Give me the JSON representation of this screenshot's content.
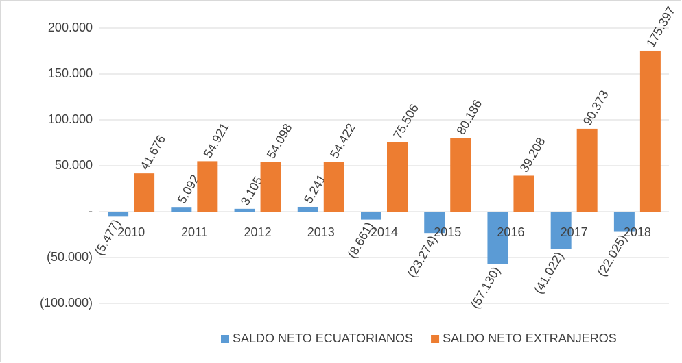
{
  "chart_data": {
    "type": "bar",
    "categories": [
      "2010",
      "2011",
      "2012",
      "2013",
      "2014",
      "2015",
      "2016",
      "2017",
      "2018"
    ],
    "series": [
      {
        "name": "SALDO NETO ECUATORIANOS",
        "color": "#5b9bd5",
        "values": [
          -5477,
          5092,
          3105,
          5241,
          -8661,
          -23274,
          -57130,
          -41022,
          -22025
        ],
        "value_labels": [
          "(5.477)",
          "5.092",
          "3.105",
          "5.241",
          "(8.661)",
          "(23.274)",
          "(57.130)",
          "(41.022)",
          "(22.025)"
        ]
      },
      {
        "name": "SALDO NETO EXTRANJEROS",
        "color": "#ed7d31",
        "values": [
          41676,
          54921,
          54098,
          54422,
          75506,
          80186,
          39208,
          90373,
          175397
        ],
        "value_labels": [
          "41.676",
          "54.921",
          "54.098",
          "54.422",
          "75.506",
          "80.186",
          "39.208",
          "90.373",
          "175.397"
        ]
      }
    ],
    "ylim": [
      -100000,
      200000
    ],
    "yticks": [
      {
        "value": 200000,
        "label": "200.000"
      },
      {
        "value": 150000,
        "label": "150.000"
      },
      {
        "value": 100000,
        "label": "100.000"
      },
      {
        "value": 50000,
        "label": "50.000"
      },
      {
        "value": 0,
        "label": "-"
      },
      {
        "value": -50000,
        "label": "(50.000)"
      },
      {
        "value": -100000,
        "label": "(100.000)"
      }
    ],
    "grid": true,
    "legend": "bottom"
  }
}
